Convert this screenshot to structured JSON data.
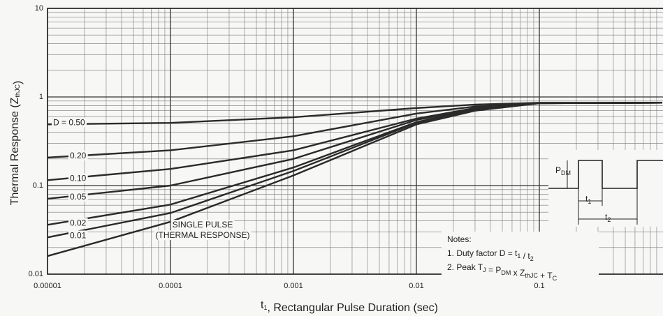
{
  "chart_data": {
    "type": "line",
    "x_label": [
      "t",
      {
        "sub": "1"
      },
      ", Rectangular Pulse Duration (sec)"
    ],
    "y_label": [
      "Thermal Response (Z",
      {
        "sub": "thJC"
      },
      ")"
    ],
    "x": [
      1e-05,
      0.0001,
      0.001,
      0.01,
      0.03,
      0.1,
      1
    ],
    "xlim": [
      1e-05,
      1
    ],
    "ylim": [
      0.01,
      10
    ],
    "xticks": [
      1e-05,
      0.0001,
      0.001,
      0.01,
      0.1
    ],
    "yticks": [
      0.01,
      0.1,
      1,
      10
    ],
    "log_x": true,
    "log_y": true,
    "grid": true,
    "color": "#2a2a2a",
    "series": [
      {
        "name": "D = 0.50",
        "values": [
          0.49,
          0.51,
          0.59,
          0.75,
          0.82,
          0.86,
          0.86
        ]
      },
      {
        "name": "0.20",
        "values": [
          0.207,
          0.25,
          0.36,
          0.65,
          0.78,
          0.85,
          0.86
        ]
      },
      {
        "name": "0.10",
        "values": [
          0.115,
          0.154,
          0.25,
          0.57,
          0.75,
          0.85,
          0.86
        ]
      },
      {
        "name": "0.05",
        "values": [
          0.071,
          0.1,
          0.2,
          0.55,
          0.73,
          0.85,
          0.86
        ]
      },
      {
        "name": "0.02",
        "values": [
          0.036,
          0.061,
          0.16,
          0.52,
          0.72,
          0.85,
          0.86
        ]
      },
      {
        "name": "0.01",
        "values": [
          0.026,
          0.049,
          0.146,
          0.51,
          0.71,
          0.85,
          0.86
        ]
      },
      {
        "name": "SINGLE PULSE",
        "values": [
          0.016,
          0.039,
          0.13,
          0.49,
          0.7,
          0.85,
          0.86
        ]
      }
    ],
    "annotations": [
      "(THERMAL RESPONSE)"
    ]
  },
  "notes": {
    "title": "Notes:",
    "lines": [
      [
        "1. Duty factor D = t",
        {
          "sub": "1"
        },
        " / t",
        {
          "sub": "2"
        }
      ],
      [
        "2. Peak T",
        {
          "sub": "J"
        },
        " = P",
        {
          "sub": "DM"
        },
        " x  Z",
        {
          "sub": "thJC"
        },
        " + T",
        {
          "sub": "C"
        }
      ]
    ]
  },
  "pulse_diagram": {
    "pdm": [
      "P",
      {
        "sub": "DM"
      }
    ],
    "t1": [
      "t",
      {
        "sub": "1"
      }
    ],
    "t2": [
      "t",
      {
        "sub": "2"
      }
    ]
  }
}
